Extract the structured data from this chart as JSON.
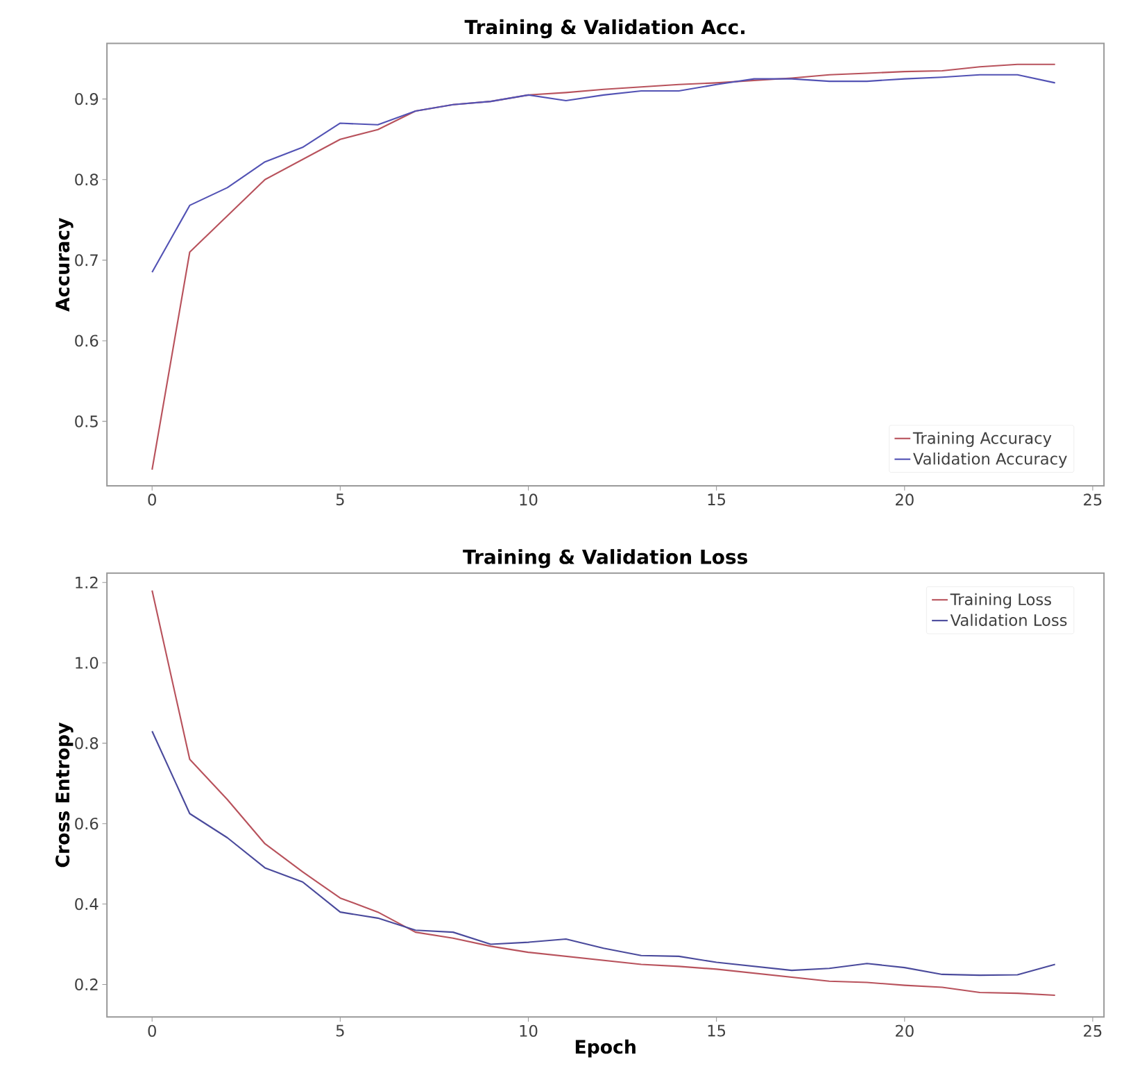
{
  "chart_data": [
    {
      "type": "line",
      "title": "Training & Validation Acc.",
      "ylabel": "Accuracy",
      "x": [
        0,
        1,
        2,
        3,
        4,
        5,
        6,
        7,
        8,
        9,
        10,
        11,
        12,
        13,
        14,
        15,
        16,
        17,
        18,
        19,
        20,
        21,
        22,
        23,
        24
      ],
      "series": [
        {
          "name": "Training Accuracy",
          "color": "#b8525c",
          "values": [
            0.44,
            0.71,
            0.755,
            0.8,
            0.825,
            0.85,
            0.862,
            0.885,
            0.893,
            0.897,
            0.905,
            0.908,
            0.912,
            0.915,
            0.918,
            0.92,
            0.923,
            0.926,
            0.93,
            0.932,
            0.934,
            0.935,
            0.94,
            0.943,
            0.943
          ]
        },
        {
          "name": "Validation Accuracy",
          "color": "#5252b4",
          "values": [
            0.685,
            0.768,
            0.79,
            0.822,
            0.84,
            0.87,
            0.868,
            0.885,
            0.893,
            0.897,
            0.905,
            0.898,
            0.905,
            0.91,
            0.91,
            0.918,
            0.925,
            0.925,
            0.922,
            0.922,
            0.925,
            0.927,
            0.93,
            0.93,
            0.92
          ]
        }
      ],
      "xlim": [
        -1.2,
        25.3
      ],
      "ylim": [
        0.42,
        0.969
      ],
      "xticks": [
        0,
        5,
        10,
        15,
        20,
        25
      ],
      "yticks": [
        0.5,
        0.6,
        0.7,
        0.8,
        0.9
      ],
      "legend": "bottom right",
      "marker": "none",
      "line_style": "solid"
    },
    {
      "type": "line",
      "title": "Training & Validation Loss",
      "xlabel": "Epoch",
      "ylabel": "Cross Entropy",
      "x": [
        0,
        1,
        2,
        3,
        4,
        5,
        6,
        7,
        8,
        9,
        10,
        11,
        12,
        13,
        14,
        15,
        16,
        17,
        18,
        19,
        20,
        21,
        22,
        23,
        24
      ],
      "series": [
        {
          "name": "Training Loss",
          "color": "#b8525c",
          "values": [
            1.18,
            0.76,
            0.66,
            0.55,
            0.48,
            0.415,
            0.38,
            0.33,
            0.315,
            0.295,
            0.28,
            0.27,
            0.26,
            0.25,
            0.245,
            0.238,
            0.228,
            0.218,
            0.208,
            0.205,
            0.198,
            0.193,
            0.18,
            0.178,
            0.173
          ]
        },
        {
          "name": "Validation Loss",
          "color": "#4a4a9c",
          "values": [
            0.83,
            0.625,
            0.565,
            0.49,
            0.455,
            0.38,
            0.365,
            0.335,
            0.33,
            0.3,
            0.305,
            0.313,
            0.29,
            0.272,
            0.27,
            0.255,
            0.245,
            0.235,
            0.24,
            0.252,
            0.242,
            0.225,
            0.223,
            0.224,
            0.25
          ]
        }
      ],
      "xlim": [
        -1.2,
        25.3
      ],
      "ylim": [
        0.119,
        1.223
      ],
      "xticks": [
        0,
        5,
        10,
        15,
        20,
        25
      ],
      "yticks": [
        0.2,
        0.4,
        0.6,
        0.8,
        {
          "value": 1.0,
          "label": "1.0"
        },
        1.2
      ],
      "legend": "top right",
      "marker": "none",
      "line_style": "solid"
    }
  ]
}
